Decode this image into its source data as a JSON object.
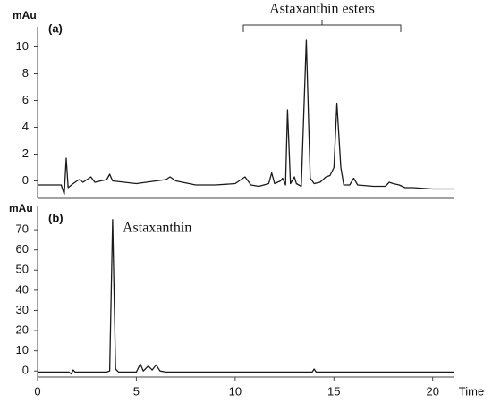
{
  "chart_data": [
    {
      "type": "line",
      "panel_label": "(a)",
      "y_label": "mAu",
      "annotation": "Astaxanthin esters",
      "color": "#1a1a1a",
      "x": [
        0,
        1.2,
        1.35,
        1.45,
        1.55,
        1.8,
        2.1,
        2.3,
        2.7,
        2.9,
        3.5,
        3.65,
        3.8,
        5,
        6.5,
        6.7,
        7,
        8,
        9,
        10,
        10.3,
        10.5,
        10.8,
        11.2,
        11.7,
        11.85,
        12,
        12.3,
        12.4,
        12.55,
        12.65,
        12.8,
        13.0,
        13.1,
        13.35,
        13.6,
        13.8,
        14,
        14.3,
        14.6,
        14.8,
        15.0,
        15.15,
        15.35,
        15.5,
        15.8,
        16,
        16.2,
        17,
        17.6,
        17.8,
        18,
        18.3,
        18.6,
        19,
        20,
        21.1
      ],
      "values": [
        -0.3,
        -0.3,
        -1,
        1.7,
        -0.5,
        -0.2,
        0.1,
        -0.1,
        0.3,
        -0.1,
        0.1,
        0.5,
        0,
        -0.2,
        0.1,
        0.3,
        0,
        -0.3,
        -0.3,
        -0.2,
        0.1,
        0.3,
        -0.3,
        -0.4,
        -0.2,
        0.6,
        -0.2,
        0,
        0.2,
        -0.3,
        5.3,
        -0.2,
        0.3,
        -0.2,
        -0.4,
        10.5,
        0.2,
        -0.2,
        -0.1,
        0.3,
        0.4,
        1,
        5.8,
        1,
        -0.3,
        -0.3,
        0.2,
        -0.3,
        -0.4,
        -0.4,
        -0.1,
        -0.2,
        -0.3,
        -0.5,
        -0.5,
        -0.6,
        -0.6
      ],
      "xlim": [
        0,
        21.1
      ],
      "ylim": [
        -1.3,
        11.5
      ],
      "yticks": [
        0,
        2,
        4,
        6,
        8,
        10
      ]
    },
    {
      "type": "line",
      "panel_label": "(b)",
      "y_label": "mAu",
      "annotation": "Astaxanthin",
      "x_label": "Time",
      "color": "#1a1a1a",
      "x": [
        0,
        1.6,
        1.7,
        1.8,
        1.9,
        3.5,
        3.65,
        3.8,
        3.95,
        4.1,
        5,
        5.2,
        5.35,
        5.6,
        5.8,
        6.0,
        6.2,
        6.5,
        13.9,
        14,
        14.1,
        21.1
      ],
      "values": [
        -0.5,
        -0.5,
        -1.5,
        0.5,
        -0.5,
        -0.5,
        0,
        75,
        1,
        -0.5,
        -0.5,
        3.5,
        0,
        2.5,
        0.5,
        3,
        0,
        -0.5,
        -0.5,
        1,
        -0.5,
        -0.5
      ],
      "xlim": [
        0,
        21.1
      ],
      "ylim": [
        -3,
        82
      ],
      "yticks": [
        0,
        10,
        20,
        30,
        40,
        50,
        60,
        70
      ],
      "xticks": [
        0,
        5,
        10,
        15,
        20
      ]
    }
  ]
}
